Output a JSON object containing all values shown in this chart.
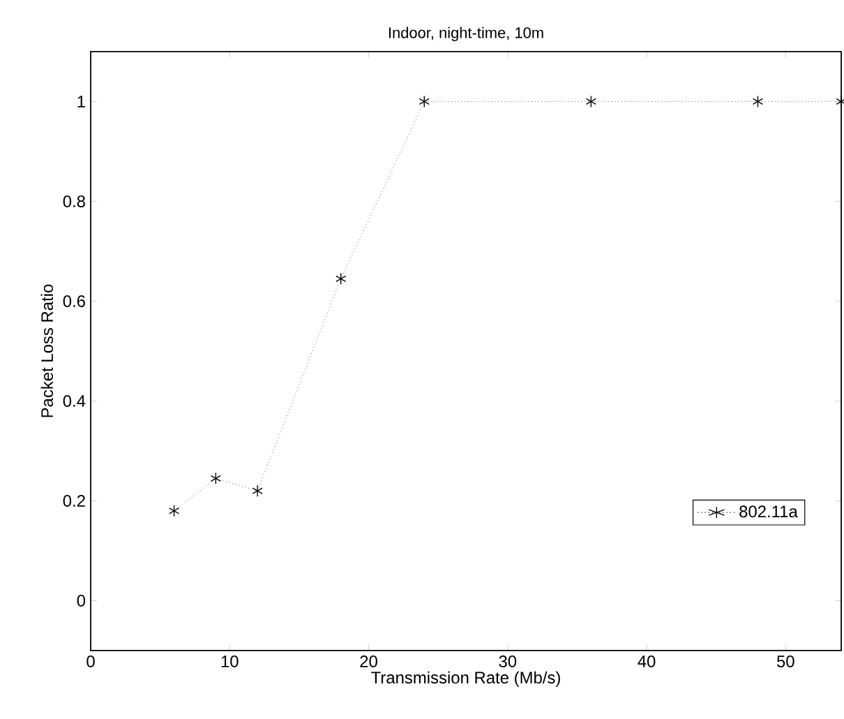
{
  "chart_data": {
    "type": "line",
    "title": "Indoor, night-time, 10m",
    "xlabel": "Transmission Rate (Mb/s)",
    "ylabel": "Packet Loss Ratio",
    "x": [
      6,
      9,
      12,
      18,
      24,
      36,
      48,
      54
    ],
    "series": [
      {
        "name": "802.11a",
        "color": "#000000",
        "values": [
          0.18,
          0.245,
          0.22,
          0.645,
          1,
          1,
          1,
          1
        ]
      }
    ],
    "xlim": [
      0,
      54
    ],
    "ylim": [
      -0.1,
      1.1
    ],
    "xticks": [
      0,
      10,
      20,
      30,
      40,
      50
    ],
    "yticks": [
      0,
      0.2,
      0.4,
      0.6,
      0.8,
      1
    ],
    "grid": false,
    "legend": "bottom right",
    "marker": "cross",
    "line_style": "dotted"
  }
}
